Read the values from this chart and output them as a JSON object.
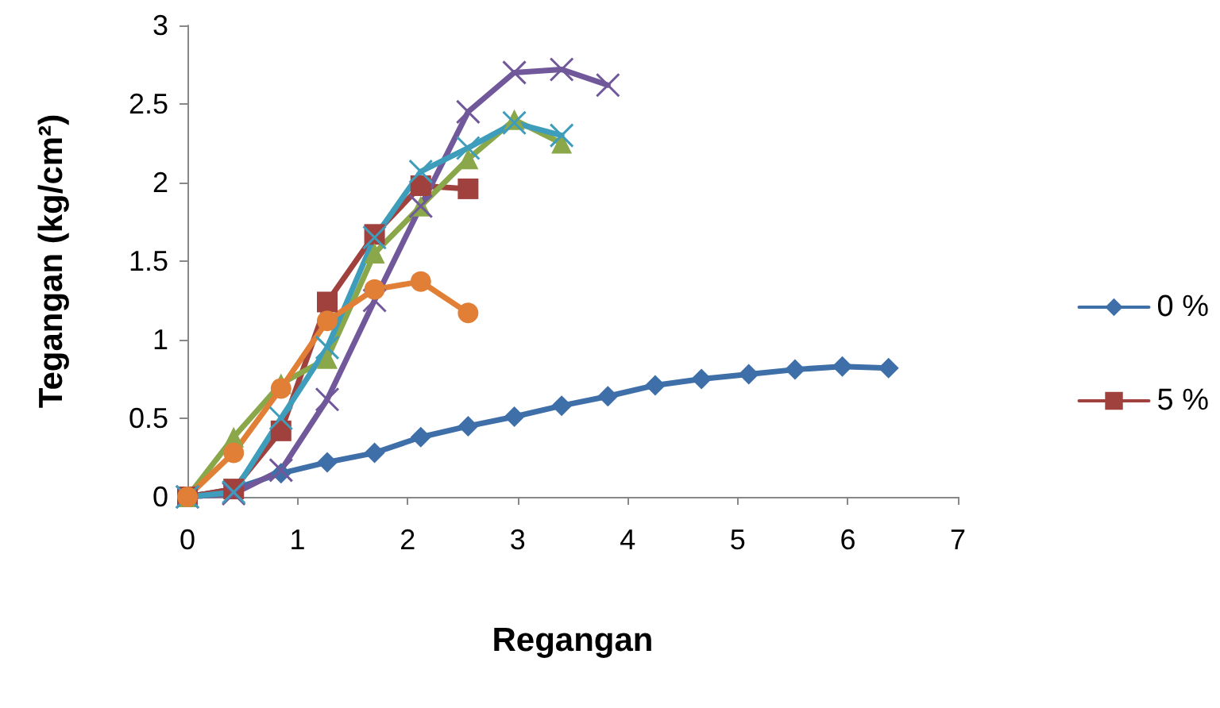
{
  "chart_data": {
    "type": "line",
    "xlabel": "Regangan",
    "ylabel": "Tegangan (kg/cm²)",
    "xlim": [
      0,
      7
    ],
    "xticks": [
      0,
      1,
      2,
      3,
      4,
      5,
      6,
      7
    ],
    "ylim": [
      0,
      3
    ],
    "yticks": [
      0,
      0.5,
      1,
      1.5,
      2,
      2.5,
      3
    ],
    "grid": false,
    "legend": "right",
    "series": [
      {
        "name": "0 %",
        "color": "#3f6fa8",
        "marker": "diamond",
        "x": [
          0,
          0.42,
          0.85,
          1.27,
          1.7,
          2.12,
          2.55,
          2.97,
          3.4,
          3.82,
          4.25,
          4.67,
          5.1,
          5.52,
          5.95,
          6.37
        ],
        "values": [
          0,
          0.05,
          0.15,
          0.22,
          0.28,
          0.38,
          0.45,
          0.51,
          0.58,
          0.64,
          0.71,
          0.75,
          0.78,
          0.81,
          0.83,
          0.82
        ]
      },
      {
        "name": "5 %",
        "color": "#a0413e",
        "marker": "square",
        "x": [
          0,
          0.42,
          0.85,
          1.27,
          1.7,
          2.12,
          2.55
        ],
        "values": [
          0,
          0.05,
          0.42,
          1.24,
          1.67,
          1.98,
          1.96
        ]
      },
      {
        "color": "#8aa84a",
        "marker": "triangle",
        "x": [
          0,
          0.42,
          0.85,
          1.27,
          1.7,
          2.12,
          2.55,
          2.97,
          3.4
        ],
        "values": [
          0,
          0.38,
          0.72,
          0.88,
          1.55,
          1.85,
          2.15,
          2.4,
          2.25
        ]
      },
      {
        "color": "#71589a",
        "marker": "cross",
        "x": [
          0,
          0.42,
          0.85,
          1.27,
          1.7,
          2.12,
          2.55,
          2.97,
          3.4,
          3.82
        ],
        "values": [
          0,
          0.02,
          0.17,
          0.62,
          1.25,
          1.85,
          2.45,
          2.7,
          2.72,
          2.62
        ]
      },
      {
        "color": "#3e9dbb",
        "marker": "cross",
        "x": [
          0,
          0.42,
          0.85,
          1.27,
          1.7,
          2.12,
          2.55,
          2.97,
          3.4
        ],
        "values": [
          0,
          0.03,
          0.5,
          0.95,
          1.65,
          2.07,
          2.22,
          2.38,
          2.3
        ]
      },
      {
        "color": "#e07f35",
        "marker": "circle",
        "x": [
          0,
          0.42,
          0.85,
          1.27,
          1.7,
          2.12,
          2.55
        ],
        "values": [
          0,
          0.28,
          0.69,
          1.12,
          1.32,
          1.37,
          1.17
        ]
      }
    ]
  }
}
